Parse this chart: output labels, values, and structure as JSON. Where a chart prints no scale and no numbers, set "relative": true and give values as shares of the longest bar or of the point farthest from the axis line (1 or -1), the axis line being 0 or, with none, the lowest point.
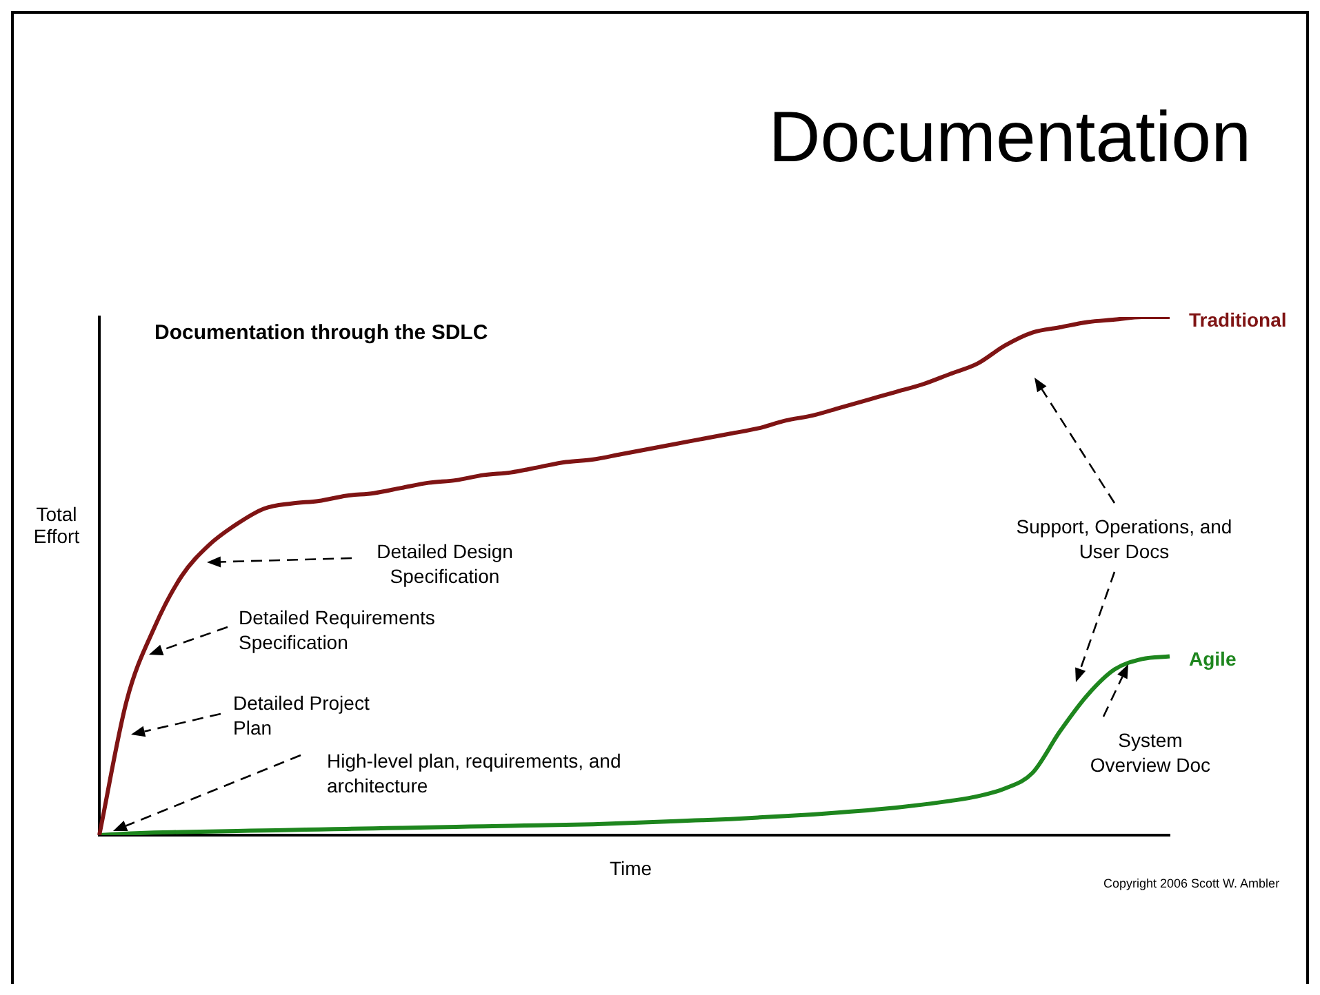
{
  "chart_data": {
    "type": "line",
    "title": "Documentation",
    "subtitle": "Documentation through the SDLC",
    "xlabel": "Time",
    "ylabel": "Total Effort",
    "relative": true,
    "grid": false,
    "legend": false,
    "marker": "none",
    "line_style": "solid",
    "categories": [
      null,
      null,
      null,
      null,
      null,
      null,
      null,
      null,
      null,
      null,
      null,
      null,
      null,
      null,
      null,
      null,
      null,
      null,
      null,
      null,
      null,
      null,
      null,
      null,
      null,
      null,
      null,
      null,
      null,
      null,
      null,
      null,
      null,
      null,
      null,
      null,
      null,
      null,
      null,
      null
    ],
    "series": [
      {
        "name": "Traditional",
        "color": "#7f1414",
        "values": [
          0,
          0.26,
          0.4,
          0.5,
          0.56,
          0.6,
          0.63,
          0.64,
          0.645,
          0.655,
          0.66,
          0.67,
          0.68,
          0.685,
          0.695,
          0.7,
          0.71,
          0.72,
          0.725,
          0.735,
          0.745,
          0.755,
          0.765,
          0.775,
          0.785,
          0.8,
          0.81,
          0.825,
          0.84,
          0.855,
          0.87,
          0.89,
          0.91,
          0.945,
          0.97,
          0.98,
          0.99,
          0.995,
          1,
          1
        ]
      },
      {
        "name": "Agile",
        "color": "#1e861e",
        "values": [
          0,
          0.003,
          0.005,
          0.006,
          0.007,
          0.008,
          0.009,
          0.01,
          0.011,
          0.012,
          0.013,
          0.014,
          0.015,
          0.016,
          0.017,
          0.018,
          0.019,
          0.02,
          0.021,
          0.023,
          0.025,
          0.027,
          0.029,
          0.031,
          0.034,
          0.037,
          0.04,
          0.044,
          0.048,
          0.053,
          0.059,
          0.066,
          0.075,
          0.09,
          0.12,
          0.2,
          0.27,
          0.32,
          0.34,
          0.345
        ]
      }
    ],
    "annotations": [
      "Detailed Design Specification",
      "Detailed Requirements Specification",
      "Detailed Project Plan",
      "High-level plan, requirements, and architecture",
      "Support, Operations, and User Docs",
      "System Overview Doc",
      "Copyright 2006 Scott W. Ambler"
    ]
  }
}
